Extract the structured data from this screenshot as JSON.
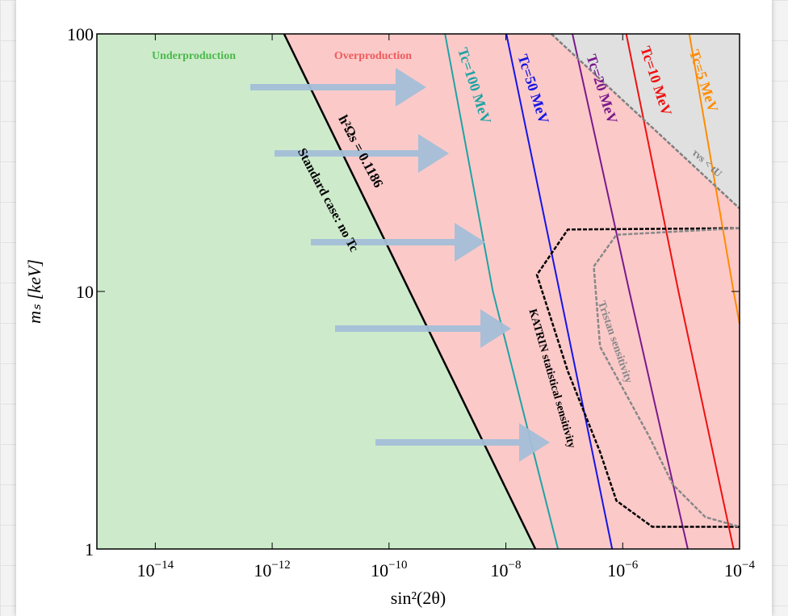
{
  "chart_data": {
    "type": "line",
    "x_label": "sin²(2θ)",
    "y_label": "mₛ [keV]",
    "xlog": true,
    "ylog": true,
    "xlim": [
      1e-15,
      0.0001
    ],
    "ylim": [
      1,
      100
    ],
    "xticks": [
      {
        "value": 1e-14,
        "label": "10−14"
      },
      {
        "value": 1e-12,
        "label": "10−12"
      },
      {
        "value": 1e-10,
        "label": "10−10"
      },
      {
        "value": 1e-08,
        "label": "10−8"
      },
      {
        "value": 1e-06,
        "label": "10−6"
      },
      {
        "value": 0.0001,
        "label": "10−4"
      }
    ],
    "yticks": [
      1,
      10,
      100
    ],
    "regions": [
      {
        "label": "Underproduction",
        "color": "#cdebcb",
        "label_color": "#4cb84c"
      },
      {
        "label": "Overproduction",
        "color": "#fcc9c9",
        "label_color": "#f05a5a"
      }
    ],
    "series": [
      {
        "name": "Standard case: no Tc",
        "color": "#000000",
        "x": [
          1.6e-12,
          3.2e-08
        ],
        "values": [
          100,
          1
        ],
        "annotation": "h²Ωs = 0.1186"
      },
      {
        "name": "Tc=100 MeV",
        "color": "#1fa3a3",
        "x": [
          9.1e-10,
          6e-09,
          7.8e-08
        ],
        "values": [
          100,
          10,
          1
        ]
      },
      {
        "name": "Tc=50 MeV",
        "color": "#1515e6",
        "x": [
          1.02e-08,
          8.3e-08,
          6.6e-07
        ],
        "values": [
          100,
          10,
          1
        ]
      },
      {
        "name": "Tc=20 MeV",
        "color": "#7a1a8c",
        "x": [
          1.38e-07,
          1.3e-06,
          1.3e-05
        ],
        "values": [
          100,
          10,
          1
        ]
      },
      {
        "name": "Tc=10 MeV",
        "color": "#ee1111",
        "x": [
          1.15e-06,
          9e-06,
          7.9e-05
        ],
        "values": [
          100,
          10,
          1
        ]
      },
      {
        "name": "Tc=5 MeV",
        "color": "#ff8c00",
        "x": [
          1.38e-05,
          7.9e-05,
          0.0001
        ],
        "values": [
          100,
          10,
          7.5
        ]
      },
      {
        "name": "τνs < tU",
        "color": "#808080",
        "dash": true,
        "fill": "#e0e0e0",
        "x": [
          6e-08,
          0.0001
        ],
        "values": [
          100,
          21
        ]
      },
      {
        "name": "KATRIN statistical sensitivity",
        "color": "#000000",
        "dash": true,
        "x": [
          0.0001,
          1.15e-07,
          3.4e-08,
          1.15e-07,
          4.1e-07,
          7.8e-07,
          3.2e-06,
          0.0001
        ],
        "values": [
          17.6,
          17.4,
          11.6,
          4.9,
          2.38,
          1.54,
          1.22,
          1.22
        ]
      },
      {
        "name": "Tristan sensitivity",
        "color": "#888888",
        "dash": true,
        "x": [
          0.0001,
          7.8e-07,
          3.2e-07,
          4.1e-07,
          2.8e-06,
          7.2e-06,
          2.6e-05,
          0.0001
        ],
        "values": [
          17.6,
          16.6,
          12.5,
          6.1,
          2.75,
          1.78,
          1.33,
          1.22
        ]
      }
    ]
  }
}
